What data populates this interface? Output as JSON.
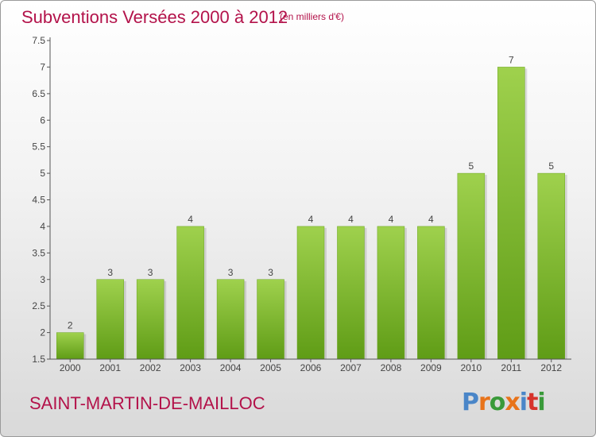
{
  "header": {
    "title": "Subventions Versées 2000 à 2012",
    "unit_note": "(en milliers d'€)"
  },
  "footer": {
    "commune": "SAINT-MARTIN-DE-MAILLOC",
    "logo_text": "Proxiti"
  },
  "colors": {
    "title": "#b3124a",
    "bar_top": "#9fd14d",
    "bar_bottom": "#5f9c16",
    "axis": "#555555",
    "grid": "#dddddd",
    "logo": [
      "#4a86c8",
      "#e8731a",
      "#3a9a3a",
      "#e8731a",
      "#4a86c8",
      "#d6332b",
      "#3a9a3a"
    ]
  },
  "chart_data": {
    "type": "bar",
    "categories": [
      "2000",
      "2001",
      "2002",
      "2003",
      "2004",
      "2005",
      "2006",
      "2007",
      "2008",
      "2009",
      "2010",
      "2011",
      "2012"
    ],
    "values": [
      2,
      3,
      3,
      4,
      3,
      3,
      4,
      4,
      4,
      4,
      5,
      7,
      5
    ],
    "value_labels": [
      "2",
      "3",
      "3",
      "4",
      "3",
      "3",
      "4",
      "4",
      "4",
      "4",
      "5",
      "7",
      "5"
    ],
    "title": "Subventions Versées 2000 à 2012",
    "xlabel": "",
    "ylabel": "",
    "ylim": [
      1.5,
      7.5
    ],
    "yticks": [
      "1.5",
      "2",
      "2.5",
      "3",
      "3.5",
      "4",
      "4.5",
      "5",
      "5.5",
      "6",
      "6.5",
      "7",
      "7.5"
    ],
    "grid": false,
    "legend": "none"
  }
}
